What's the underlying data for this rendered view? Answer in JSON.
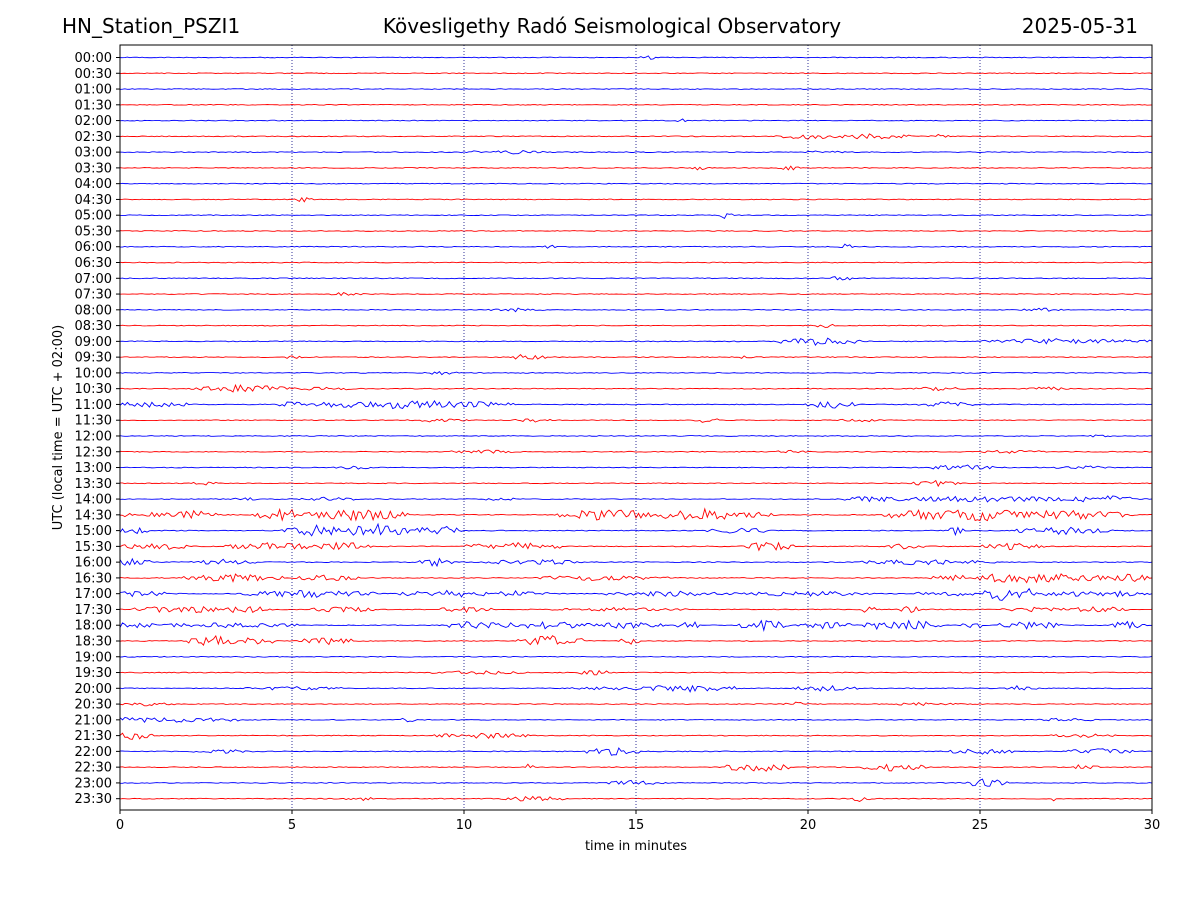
{
  "header": {
    "station": "HN_Station_PSZI1",
    "observatory": "Kövesligethy Radó Seismological Observatory",
    "date": "2025-05-31"
  },
  "chart_data": {
    "type": "line",
    "title": "Kövesligethy Radó Seismological Observatory",
    "xlabel": "time in minutes",
    "ylabel": "UTC (local time = UTC + 02:00)",
    "xlim": [
      0,
      30
    ],
    "xticks": [
      "0",
      "5",
      "10",
      "15",
      "20",
      "25",
      "30"
    ],
    "xtick_values": [
      0,
      5,
      10,
      15,
      20,
      25,
      30
    ],
    "vertical_gridlines": [
      5,
      10,
      15,
      20,
      25
    ],
    "trace_colors": [
      "#0000ff",
      "#ff0000"
    ],
    "trace_labels": [
      "00:00",
      "00:30",
      "01:00",
      "01:30",
      "02:00",
      "02:30",
      "03:00",
      "03:30",
      "04:00",
      "04:30",
      "05:00",
      "05:30",
      "06:00",
      "06:30",
      "07:00",
      "07:30",
      "08:00",
      "08:30",
      "09:00",
      "09:30",
      "10:00",
      "10:30",
      "11:00",
      "11:30",
      "12:00",
      "12:30",
      "13:00",
      "13:30",
      "14:00",
      "14:30",
      "15:00",
      "15:30",
      "16:00",
      "16:30",
      "17:00",
      "17:30",
      "18:00",
      "18:30",
      "19:00",
      "19:30",
      "20:00",
      "20:30",
      "21:00",
      "21:30",
      "22:00",
      "22:30",
      "23:00",
      "23:30"
    ],
    "activity": [
      [
        [
          15.4,
          0.3,
          2
        ]
      ],
      [],
      [],
      [],
      [
        [
          16.3,
          0.2,
          2
        ]
      ],
      [
        [
          20.0,
          1.0,
          3
        ],
        [
          21.8,
          1.2,
          3
        ],
        [
          23.8,
          0.3,
          2
        ]
      ],
      [
        [
          10.3,
          0.4,
          2
        ],
        [
          11.5,
          0.8,
          2
        ],
        [
          20.5,
          0.6,
          2
        ]
      ],
      [
        [
          16.8,
          0.2,
          3
        ],
        [
          19.5,
          0.4,
          3
        ]
      ],
      [],
      [
        [
          5.3,
          0.3,
          3
        ]
      ],
      [
        [
          17.6,
          0.2,
          4
        ]
      ],
      [],
      [
        [
          12.5,
          0.2,
          2
        ],
        [
          21.1,
          0.2,
          3
        ]
      ],
      [],
      [
        [
          21.0,
          0.3,
          3
        ]
      ],
      [
        [
          6.5,
          0.6,
          2
        ]
      ],
      [
        [
          11.5,
          0.8,
          2
        ],
        [
          26.8,
          0.6,
          2
        ]
      ],
      [
        [
          20.5,
          0.4,
          2
        ]
      ],
      [
        [
          20.3,
          1.2,
          4
        ],
        [
          27.5,
          2.5,
          3
        ]
      ],
      [
        [
          5.0,
          0.3,
          2
        ],
        [
          11.8,
          0.6,
          3
        ],
        [
          18.2,
          0.2,
          2
        ]
      ],
      [
        [
          9.3,
          0.5,
          2
        ]
      ],
      [
        [
          3.5,
          1.5,
          4
        ],
        [
          6.0,
          1.0,
          2
        ],
        [
          23.8,
          0.8,
          2
        ],
        [
          27.0,
          0.6,
          2
        ]
      ],
      [
        [
          0.1,
          0.3,
          5
        ],
        [
          1.0,
          1.0,
          4
        ],
        [
          5.0,
          0.5,
          3
        ],
        [
          8.0,
          2.5,
          5
        ],
        [
          10.5,
          1.0,
          3
        ],
        [
          20.7,
          0.8,
          4
        ],
        [
          24.0,
          0.8,
          3
        ]
      ],
      [
        [
          9.2,
          1.0,
          2
        ],
        [
          12.0,
          0.6,
          2
        ],
        [
          17.0,
          0.4,
          3
        ],
        [
          21.5,
          0.6,
          2
        ]
      ],
      [
        [
          28.5,
          0.3,
          2
        ]
      ],
      [
        [
          10.5,
          1.0,
          2
        ],
        [
          19.5,
          0.5,
          2
        ],
        [
          26.0,
          1.0,
          2
        ]
      ],
      [
        [
          6.8,
          0.6,
          2
        ],
        [
          24.5,
          1.0,
          3
        ],
        [
          28.0,
          0.8,
          2
        ]
      ],
      [
        [
          2.5,
          0.4,
          2
        ],
        [
          23.8,
          0.8,
          3
        ]
      ],
      [
        [
          3.8,
          0.5,
          2
        ],
        [
          6.0,
          1.0,
          2
        ],
        [
          11.0,
          0.5,
          2
        ],
        [
          22.0,
          1.0,
          3
        ],
        [
          25.0,
          3.5,
          3
        ],
        [
          28.5,
          1.0,
          4
        ]
      ],
      [
        [
          0.8,
          1.0,
          3
        ],
        [
          2.2,
          0.6,
          5
        ],
        [
          4.8,
          1.0,
          6
        ],
        [
          7.0,
          1.5,
          6
        ],
        [
          14.2,
          1.5,
          6
        ],
        [
          16.8,
          1.2,
          7
        ],
        [
          18.0,
          1.2,
          4
        ],
        [
          23.2,
          1.0,
          6
        ],
        [
          25.0,
          1.5,
          7
        ],
        [
          27.5,
          2.0,
          5
        ]
      ],
      [
        [
          0.3,
          0.5,
          4
        ],
        [
          5.7,
          1.0,
          6
        ],
        [
          7.5,
          1.5,
          7
        ],
        [
          9.5,
          0.5,
          5
        ],
        [
          18.0,
          1.0,
          3
        ],
        [
          24.3,
          0.2,
          6
        ],
        [
          27.5,
          1.5,
          4
        ]
      ],
      [
        [
          1.0,
          1.0,
          4
        ],
        [
          4.5,
          1.5,
          4
        ],
        [
          6.5,
          0.8,
          5
        ],
        [
          11.5,
          1.5,
          4
        ],
        [
          18.8,
          0.8,
          5
        ],
        [
          22.8,
          0.6,
          3
        ],
        [
          26.0,
          1.0,
          4
        ]
      ],
      [
        [
          0.3,
          0.6,
          4
        ],
        [
          3.0,
          1.0,
          3
        ],
        [
          9.2,
          0.5,
          5
        ],
        [
          12.0,
          1.5,
          3
        ],
        [
          23.5,
          2.0,
          3
        ]
      ],
      [
        [
          3.3,
          1.5,
          4
        ],
        [
          6.0,
          1.0,
          3
        ],
        [
          14.0,
          2.0,
          3
        ],
        [
          26.5,
          3.0,
          5
        ],
        [
          29.5,
          0.4,
          6
        ]
      ],
      [
        [
          0.5,
          1.0,
          3
        ],
        [
          5.5,
          2.0,
          4
        ],
        [
          9.5,
          1.5,
          4
        ],
        [
          11.5,
          1.0,
          3
        ],
        [
          16.0,
          2.0,
          3
        ],
        [
          20.0,
          2.0,
          3
        ],
        [
          24.0,
          1.0,
          3
        ],
        [
          25.9,
          0.8,
          9
        ],
        [
          27.5,
          1.5,
          3
        ],
        [
          29.0,
          1.0,
          3
        ]
      ],
      [
        [
          1.8,
          1.5,
          4
        ],
        [
          3.5,
          1.0,
          4
        ],
        [
          6.5,
          1.0,
          3
        ],
        [
          10.0,
          0.8,
          3
        ],
        [
          14.5,
          2.0,
          2
        ],
        [
          21.8,
          0.3,
          4
        ],
        [
          23.0,
          0.3,
          4
        ],
        [
          26.5,
          1.0,
          3
        ],
        [
          28.5,
          1.0,
          3
        ]
      ],
      [
        [
          0.3,
          1.0,
          3
        ],
        [
          3.2,
          2.0,
          3
        ],
        [
          10.5,
          1.0,
          5
        ],
        [
          12.5,
          1.5,
          4
        ],
        [
          14.8,
          1.0,
          4
        ],
        [
          16.5,
          0.3,
          6
        ],
        [
          18.7,
          0.8,
          5
        ],
        [
          20.5,
          0.8,
          4
        ],
        [
          21.9,
          0.3,
          5
        ],
        [
          23.0,
          1.0,
          5
        ],
        [
          24.8,
          0.4,
          4
        ],
        [
          26.5,
          1.0,
          4
        ],
        [
          29.3,
          0.5,
          5
        ]
      ],
      [
        [
          2.8,
          0.8,
          6
        ],
        [
          3.5,
          1.0,
          5
        ],
        [
          6.0,
          0.8,
          4
        ],
        [
          12.5,
          1.0,
          6
        ],
        [
          14.8,
          0.3,
          4
        ]
      ],
      [],
      [
        [
          10.5,
          1.5,
          2
        ],
        [
          13.8,
          0.5,
          3
        ]
      ],
      [
        [
          5.0,
          1.5,
          2
        ],
        [
          14.5,
          1.5,
          2
        ],
        [
          16.5,
          1.5,
          4
        ],
        [
          20.5,
          1.0,
          3
        ],
        [
          26.2,
          0.5,
          3
        ]
      ],
      [
        [
          0.8,
          0.8,
          2
        ],
        [
          19.6,
          0.3,
          3
        ],
        [
          23.5,
          1.0,
          2
        ]
      ],
      [
        [
          1.0,
          2.5,
          3
        ],
        [
          8.3,
          0.3,
          3
        ],
        [
          27.5,
          1.0,
          2
        ]
      ],
      [
        [
          0.4,
          0.6,
          4
        ],
        [
          10.5,
          1.5,
          3
        ],
        [
          28.0,
          1.0,
          2
        ]
      ],
      [
        [
          3.0,
          1.0,
          2
        ],
        [
          14.3,
          0.8,
          4
        ],
        [
          25.0,
          1.0,
          3
        ],
        [
          28.5,
          1.0,
          3
        ]
      ],
      [
        [
          11.9,
          0.1,
          6
        ],
        [
          18.5,
          1.0,
          5
        ],
        [
          22.5,
          1.0,
          4
        ],
        [
          28.0,
          0.5,
          3
        ]
      ],
      [
        [
          15.0,
          0.8,
          3
        ],
        [
          25.2,
          0.6,
          5
        ]
      ],
      [
        [
          7.0,
          0.5,
          2
        ],
        [
          12.0,
          1.0,
          3
        ],
        [
          21.5,
          0.3,
          3
        ],
        [
          27.1,
          0.1,
          5
        ]
      ]
    ]
  }
}
